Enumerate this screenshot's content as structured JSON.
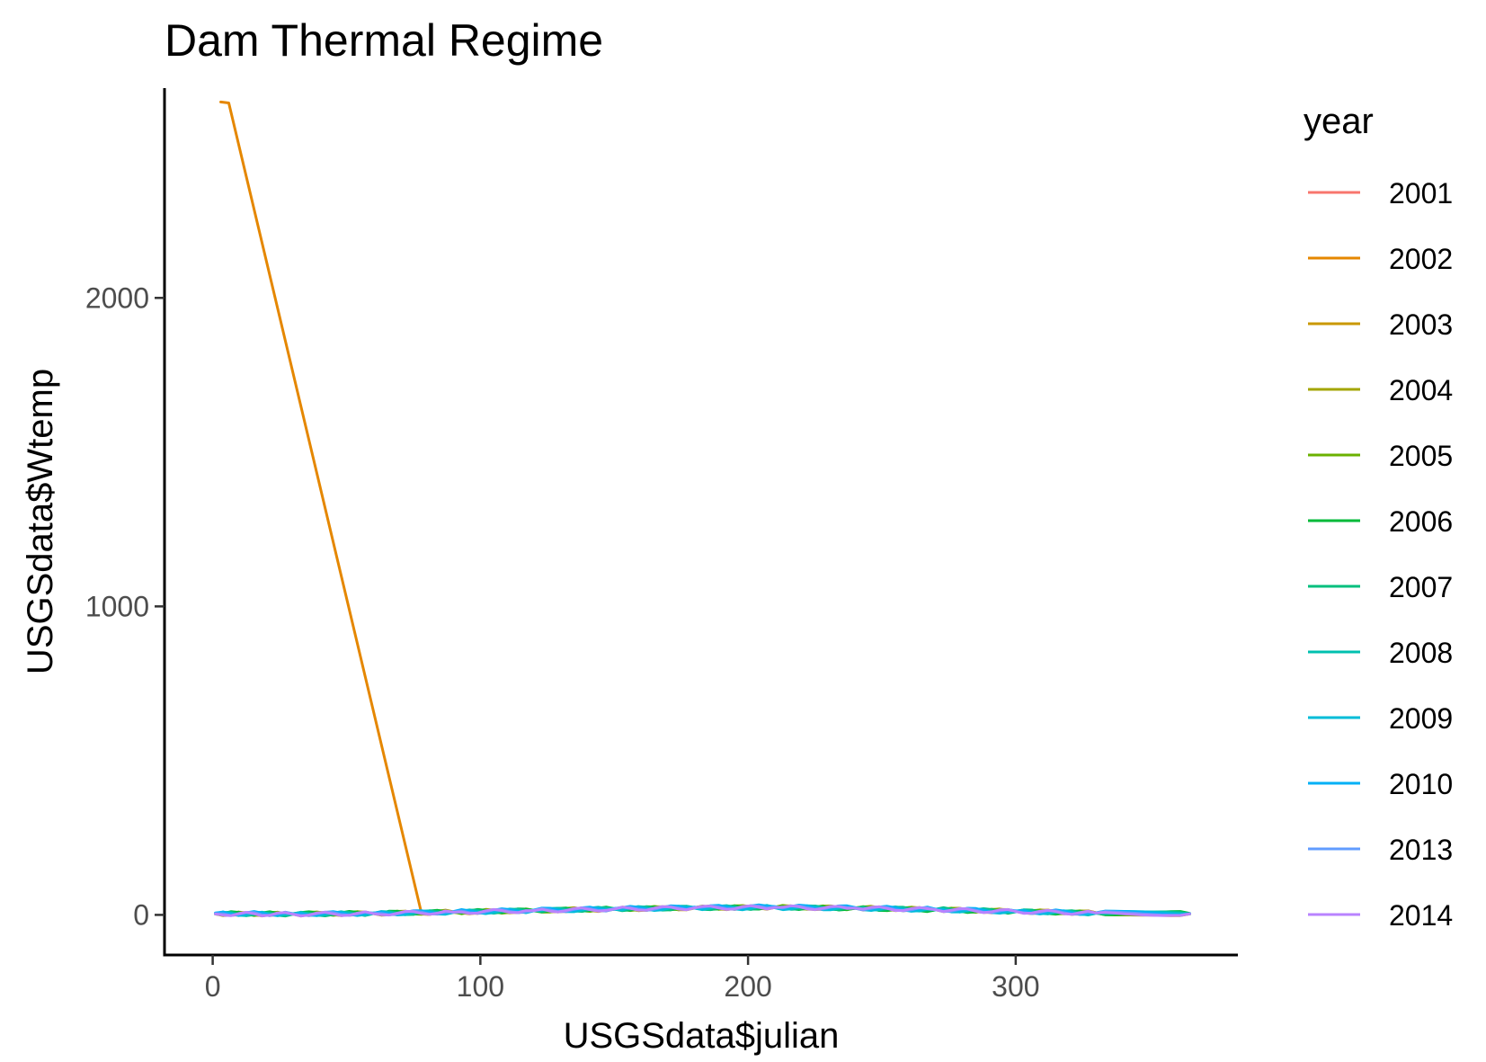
{
  "chart_data": {
    "type": "line",
    "title": "Dam Thermal Regime",
    "xlabel": "USGSdata$julian",
    "ylabel": "USGSdata$Wtemp",
    "xlim": [
      -18,
      383
    ],
    "ylim": [
      -130,
      2680
    ],
    "x_ticks": [
      0,
      100,
      200,
      300
    ],
    "y_ticks": [
      0,
      1000,
      2000
    ],
    "x_tick_labels": [
      "0",
      "100",
      "200",
      "300"
    ],
    "y_tick_labels": [
      "0",
      "1000",
      "2000"
    ],
    "grid": false,
    "legend": {
      "title": "year",
      "position": "right"
    },
    "series": [
      {
        "name": "2001",
        "color": "#F8766D",
        "x": [
          1,
          30,
          60,
          90,
          120,
          150,
          180,
          210,
          240,
          270,
          300,
          330,
          365
        ],
        "y": [
          4,
          3,
          5,
          9,
          14,
          19,
          23,
          24,
          22,
          17,
          11,
          6,
          4
        ]
      },
      {
        "name": "2002",
        "color": "#E58700",
        "x": [
          3,
          6,
          78,
          90,
          120,
          150,
          180,
          210,
          240,
          270,
          300,
          330,
          365
        ],
        "y": [
          2635,
          2632,
          6,
          9,
          14,
          19,
          23,
          24,
          22,
          17,
          11,
          6,
          3
        ]
      },
      {
        "name": "2003",
        "color": "#C99800",
        "x": [
          1,
          30,
          60,
          90,
          120,
          150,
          180,
          210,
          240,
          270,
          300,
          330,
          365
        ],
        "y": [
          3,
          2,
          4,
          8,
          14,
          18,
          22,
          24,
          22,
          17,
          12,
          7,
          4
        ]
      },
      {
        "name": "2004",
        "color": "#A3A500",
        "x": [
          1,
          30,
          60,
          90,
          120,
          150,
          180,
          210,
          240,
          270,
          300,
          330,
          365
        ],
        "y": [
          4,
          3,
          5,
          10,
          15,
          20,
          23,
          25,
          23,
          18,
          12,
          7,
          3
        ]
      },
      {
        "name": "2005",
        "color": "#6BB100",
        "x": [
          1,
          30,
          60,
          90,
          120,
          150,
          180,
          210,
          240,
          270,
          300,
          330,
          365
        ],
        "y": [
          3,
          4,
          5,
          9,
          13,
          19,
          24,
          25,
          22,
          17,
          11,
          6,
          4
        ]
      },
      {
        "name": "2006",
        "color": "#00BA38",
        "x": [
          1,
          30,
          60,
          90,
          120,
          150,
          180,
          210,
          240,
          270,
          300,
          330,
          365
        ],
        "y": [
          5,
          4,
          6,
          10,
          15,
          20,
          23,
          24,
          21,
          16,
          10,
          6,
          5
        ]
      },
      {
        "name": "2007",
        "color": "#00BF7D",
        "x": [
          1,
          30,
          60,
          90,
          120,
          150,
          180,
          210,
          240,
          270,
          300,
          330,
          365
        ],
        "y": [
          4,
          2,
          4,
          9,
          14,
          19,
          22,
          24,
          22,
          18,
          12,
          6,
          3
        ]
      },
      {
        "name": "2008",
        "color": "#00C0AF",
        "x": [
          1,
          30,
          60,
          90,
          120,
          150,
          180,
          210,
          240,
          270,
          300,
          330,
          365
        ],
        "y": [
          3,
          3,
          5,
          9,
          15,
          20,
          24,
          25,
          23,
          17,
          11,
          5,
          3
        ]
      },
      {
        "name": "2009",
        "color": "#00BCD8",
        "x": [
          1,
          30,
          60,
          90,
          120,
          150,
          180,
          210,
          240,
          270,
          300,
          330,
          365
        ],
        "y": [
          4,
          3,
          4,
          8,
          13,
          18,
          22,
          23,
          21,
          16,
          10,
          6,
          4
        ]
      },
      {
        "name": "2010",
        "color": "#00B0F6",
        "x": [
          1,
          30,
          60,
          90,
          120,
          150,
          180,
          210,
          240,
          270,
          300,
          330,
          365
        ],
        "y": [
          6,
          4,
          6,
          11,
          16,
          21,
          25,
          27,
          24,
          19,
          13,
          7,
          4
        ]
      },
      {
        "name": "2013",
        "color": "#619CFF",
        "x": [
          1,
          30,
          60,
          90,
          120,
          150,
          180,
          210,
          240,
          270,
          300,
          330,
          365
        ],
        "y": [
          4,
          3,
          5,
          9,
          14,
          19,
          23,
          25,
          22,
          17,
          11,
          6,
          4
        ]
      },
      {
        "name": "2014",
        "color": "#B983FF",
        "x": [
          1,
          30,
          60,
          90,
          120,
          150,
          180,
          210,
          240,
          270,
          300,
          330,
          365
        ],
        "y": [
          3,
          2,
          4,
          9,
          14,
          19,
          23,
          24,
          22,
          17,
          11,
          6,
          3
        ]
      }
    ],
    "legend_colors": [
      "#F8766D",
      "#E58700",
      "#C99800",
      "#A3A500",
      "#6BB100",
      "#00BA38",
      "#00BF7D",
      "#00C0AF",
      "#00BCD8",
      "#00B0F6",
      "#619CFF",
      "#B983FF"
    ]
  }
}
